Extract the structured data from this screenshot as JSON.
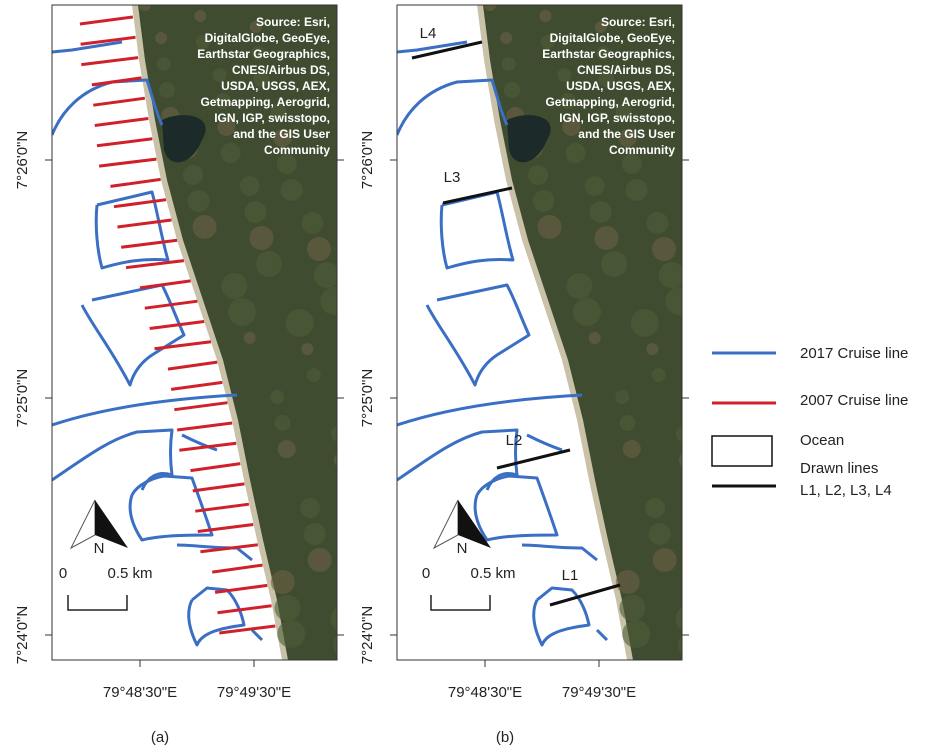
{
  "panels": [
    "(a)",
    "(b)"
  ],
  "yticks": [
    "7°26'0\"N",
    "7°25'0\"N",
    "7°24'0\"N"
  ],
  "xticks": [
    "79°48'30\"E",
    "79°49'30\"E"
  ],
  "source": [
    "Source: Esri,",
    "DigitalGlobe, GeoEye,",
    "Earthstar Geographics,",
    "CNES/Airbus DS,",
    "USDA, USGS, AEX,",
    "Getmapping, Aerogrid,",
    "IGN, IGP, swisstopo,",
    "and the GIS User",
    "Community"
  ],
  "north": "N",
  "scale": [
    "0",
    "0.5 km"
  ],
  "line_labels": [
    "L4",
    "L3",
    "L2",
    "L1"
  ],
  "legend": [
    {
      "label": "2017 Cruise line",
      "color": "#3a6fc4"
    },
    {
      "label": "2007 Cruise line",
      "color": "#d0202a"
    },
    {
      "label": "Ocean"
    },
    {
      "label": "Drawn lines",
      "sublabel": "L1, L2, L3, L4",
      "color": "#111111"
    }
  ]
}
